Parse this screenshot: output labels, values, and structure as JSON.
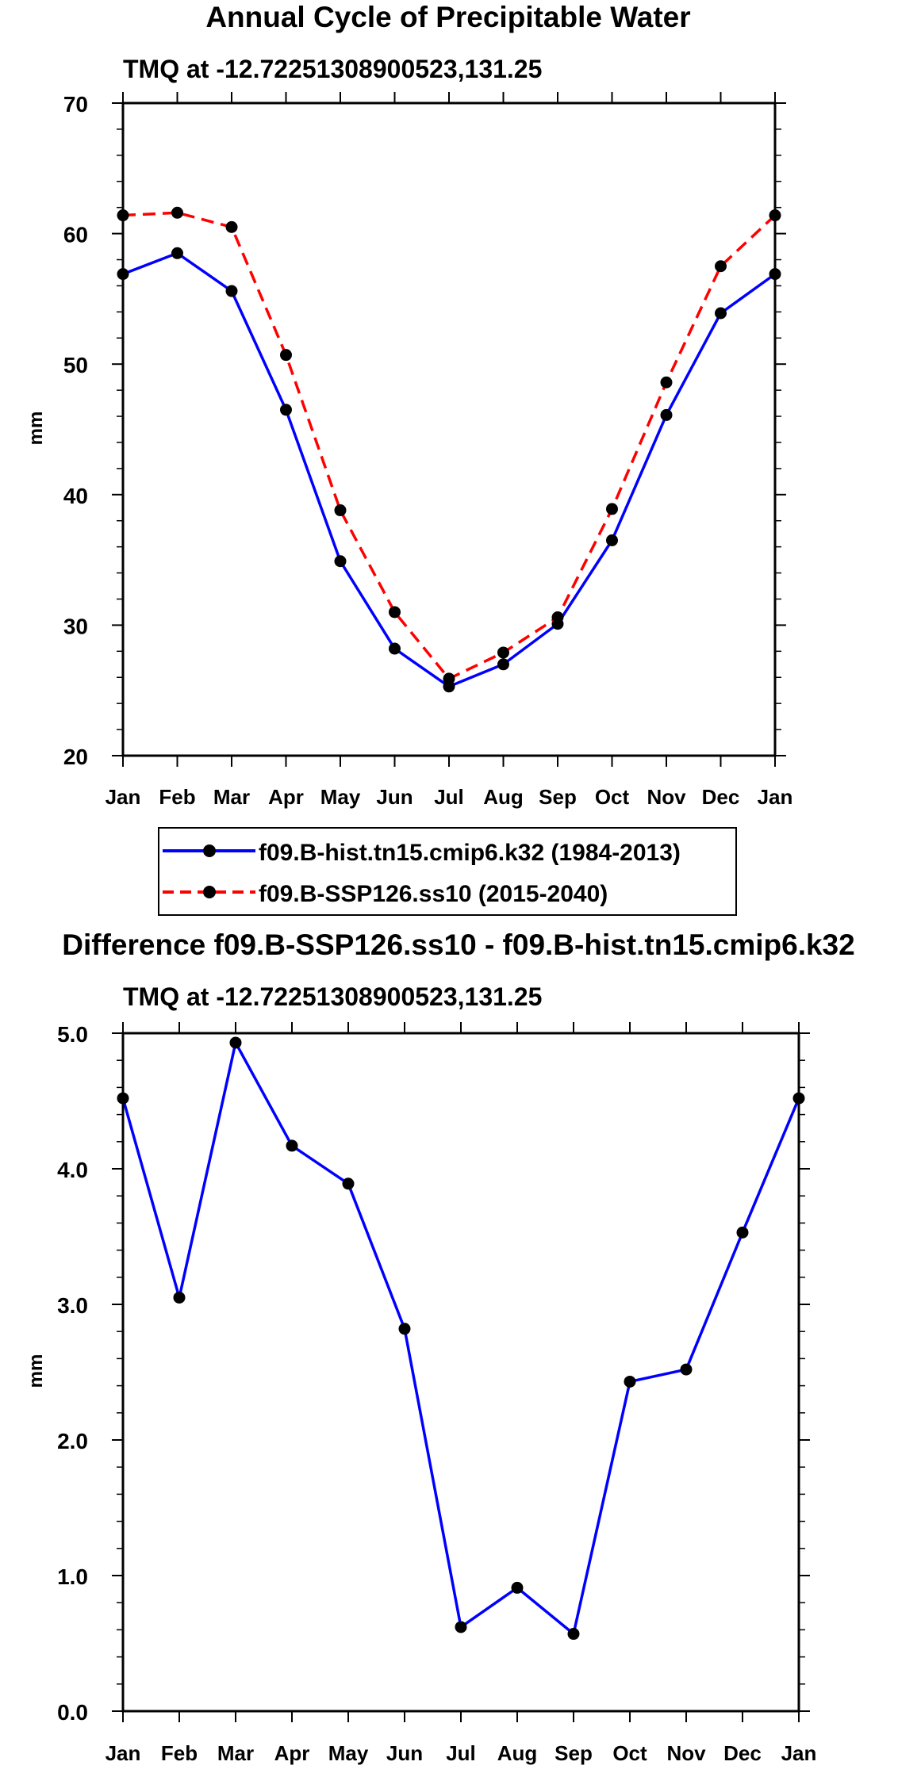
{
  "chart_data": [
    {
      "type": "line",
      "title": "Annual Cycle of Precipitable Water",
      "subtitle": "TMQ at -12.72251308900523,131.25",
      "ylabel": "mm",
      "xlabel": "",
      "categories": [
        "Jan",
        "Feb",
        "Mar",
        "Apr",
        "May",
        "Jun",
        "Jul",
        "Aug",
        "Sep",
        "Oct",
        "Nov",
        "Dec",
        "Jan"
      ],
      "ylim": [
        20,
        70
      ],
      "yticks": [
        20,
        30,
        40,
        50,
        60,
        70
      ],
      "ytick_labels": [
        "20",
        "30",
        "40",
        "50",
        "60",
        "70"
      ],
      "series": [
        {
          "name": "f09.B-hist.tn15.cmip6.k32 (1984-2013)",
          "color": "#0000ff",
          "dash": "solid",
          "values": [
            56.9,
            58.5,
            55.6,
            46.5,
            34.9,
            28.2,
            25.3,
            27.0,
            30.1,
            36.5,
            46.1,
            53.9,
            56.9
          ]
        },
        {
          "name": "f09.B-SSP126.ss10 (2015-2040)",
          "color": "#ff0000",
          "dash": "dashed",
          "values": [
            61.4,
            61.6,
            60.5,
            50.7,
            38.8,
            31.0,
            25.9,
            27.9,
            30.6,
            38.9,
            48.6,
            57.5,
            61.4
          ]
        }
      ],
      "legend_position": "below"
    },
    {
      "type": "line",
      "title": "Difference f09.B-SSP126.ss10 - f09.B-hist.tn15.cmip6.k32",
      "subtitle": "TMQ at -12.72251308900523,131.25",
      "ylabel": "mm",
      "xlabel": "",
      "categories": [
        "Jan",
        "Feb",
        "Mar",
        "Apr",
        "May",
        "Jun",
        "Jul",
        "Aug",
        "Sep",
        "Oct",
        "Nov",
        "Dec",
        "Jan"
      ],
      "ylim": [
        0,
        5
      ],
      "yticks": [
        0,
        1,
        2,
        3,
        4,
        5
      ],
      "ytick_labels": [
        "0.0",
        "1.0",
        "2.0",
        "3.0",
        "4.0",
        "5.0"
      ],
      "series": [
        {
          "name": "difference",
          "color": "#0000ff",
          "dash": "solid",
          "values": [
            4.52,
            3.05,
            4.93,
            4.17,
            3.89,
            2.82,
            0.62,
            0.91,
            0.57,
            2.43,
            2.52,
            3.53,
            4.52
          ]
        }
      ]
    }
  ]
}
